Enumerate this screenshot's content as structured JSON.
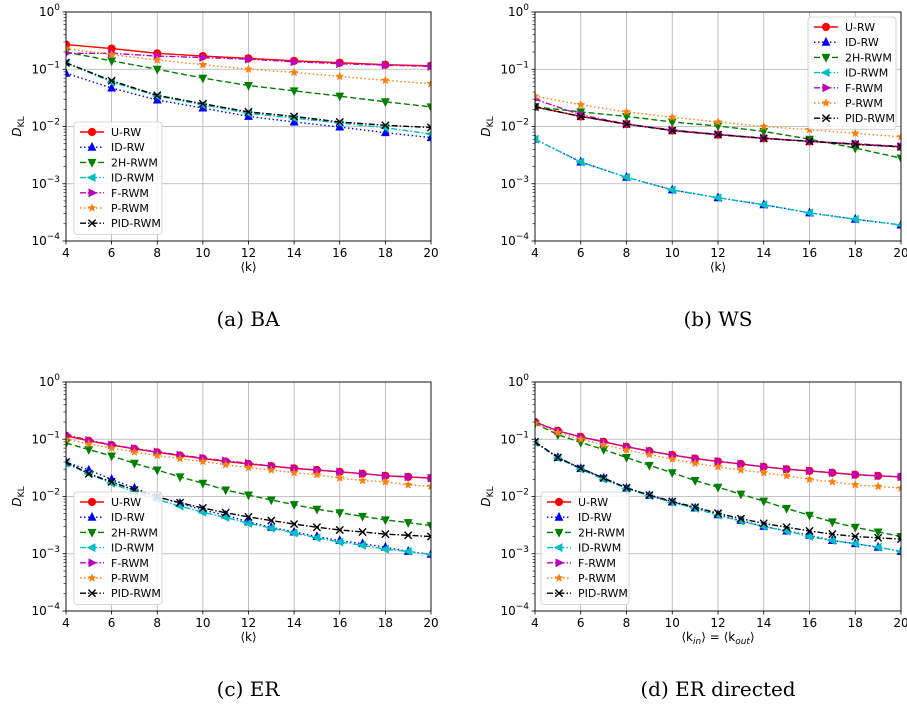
{
  "figure": {
    "series_styles": [
      {
        "name": "U-RW",
        "color": "#ff0000",
        "dash": "",
        "marker": "circle"
      },
      {
        "name": "ID-RW",
        "color": "#0000ff",
        "dash": "1.5,2.5",
        "marker": "tri-up"
      },
      {
        "name": "2H-RWM",
        "color": "#008000",
        "dash": "6,3",
        "marker": "tri-down"
      },
      {
        "name": "ID-RWM",
        "color": "#00bfbf",
        "dash": "6,2,1.5,2",
        "marker": "tri-left"
      },
      {
        "name": "F-RWM",
        "color": "#bf00bf",
        "dash": "6,2,1.5,2",
        "marker": "tri-right"
      },
      {
        "name": "P-RWM",
        "color": "#ff7f0e",
        "dash": "1.5,2.5",
        "marker": "star"
      },
      {
        "name": "PID-RWM",
        "color": "#000000",
        "dash": "6,2,1.5,2",
        "marker": "x"
      }
    ]
  },
  "chart_data": [
    {
      "type": "line",
      "caption": "(a) BA",
      "xlabel": "⟨k⟩",
      "ylabel": "D_KL",
      "yscale": "log",
      "xlim": [
        4,
        20
      ],
      "ylim": [
        0.0001,
        1
      ],
      "xticks": [
        "4",
        "6",
        "8",
        "10",
        "12",
        "14",
        "16",
        "18",
        "20"
      ],
      "yticks": [
        "10^-4",
        "10^-3",
        "10^-2",
        "10^-1",
        "10^0"
      ],
      "grid": true,
      "legend_position": "lower-left",
      "x": [
        4,
        6,
        8,
        10,
        12,
        14,
        16,
        18,
        20
      ],
      "series": [
        {
          "name": "U-RW",
          "values": [
            0.27,
            0.23,
            0.19,
            0.17,
            0.155,
            0.14,
            0.13,
            0.12,
            0.115
          ]
        },
        {
          "name": "ID-RW",
          "values": [
            0.085,
            0.047,
            0.029,
            0.021,
            0.015,
            0.012,
            0.0098,
            0.0078,
            0.0064
          ]
        },
        {
          "name": "2H-RWM",
          "values": [
            0.2,
            0.14,
            0.1,
            0.07,
            0.052,
            0.042,
            0.034,
            0.027,
            0.022
          ]
        },
        {
          "name": "ID-RWM",
          "values": [
            0.13,
            0.06,
            0.034,
            0.024,
            0.017,
            0.014,
            0.0115,
            0.0095,
            0.0074
          ]
        },
        {
          "name": "F-RWM",
          "values": [
            0.19,
            0.19,
            0.17,
            0.16,
            0.15,
            0.135,
            0.125,
            0.118,
            0.112
          ]
        },
        {
          "name": "P-RWM",
          "values": [
            0.23,
            0.18,
            0.145,
            0.12,
            0.1,
            0.088,
            0.075,
            0.064,
            0.056
          ]
        },
        {
          "name": "PID-RWM",
          "values": [
            0.13,
            0.063,
            0.035,
            0.025,
            0.018,
            0.015,
            0.012,
            0.0105,
            0.0096
          ]
        }
      ]
    },
    {
      "type": "line",
      "caption": "(b) WS",
      "xlabel": "⟨k⟩",
      "ylabel": "D_KL",
      "yscale": "log",
      "xlim": [
        4,
        20
      ],
      "ylim": [
        0.0001,
        1
      ],
      "xticks": [
        "4",
        "6",
        "8",
        "10",
        "12",
        "14",
        "16",
        "18",
        "20"
      ],
      "yticks": [
        "10^-4",
        "10^-3",
        "10^-2",
        "10^-1",
        "10^0"
      ],
      "grid": true,
      "legend_position": "top-right",
      "x": [
        4,
        6,
        8,
        10,
        12,
        14,
        16,
        18,
        20
      ],
      "series": [
        {
          "name": "U-RW",
          "values": [
            0.022,
            0.015,
            0.011,
            0.0085,
            0.0072,
            0.0062,
            0.0055,
            0.0049,
            0.0044
          ]
        },
        {
          "name": "ID-RW",
          "values": [
            0.006,
            0.0024,
            0.0013,
            0.00078,
            0.00057,
            0.00043,
            0.00031,
            0.00024,
            0.00019
          ]
        },
        {
          "name": "2H-RWM",
          "values": [
            0.022,
            0.018,
            0.015,
            0.012,
            0.0102,
            0.0082,
            0.006,
            0.0042,
            0.0028
          ]
        },
        {
          "name": "ID-RWM",
          "values": [
            0.006,
            0.0024,
            0.0013,
            0.00078,
            0.00057,
            0.00043,
            0.00031,
            0.00024,
            0.00019
          ]
        },
        {
          "name": "F-RWM",
          "values": [
            0.03,
            0.016,
            0.011,
            0.0087,
            0.0073,
            0.0063,
            0.0055,
            0.005,
            0.0045
          ]
        },
        {
          "name": "P-RWM",
          "values": [
            0.034,
            0.024,
            0.018,
            0.0145,
            0.012,
            0.01,
            0.0088,
            0.0076,
            0.0066
          ]
        },
        {
          "name": "PID-RWM",
          "values": [
            0.022,
            0.015,
            0.011,
            0.0085,
            0.0072,
            0.0062,
            0.0055,
            0.0049,
            0.0044
          ]
        }
      ]
    },
    {
      "type": "line",
      "caption": "(c) ER",
      "xlabel": "⟨k⟩",
      "ylabel": "D_KL",
      "yscale": "log",
      "xlim": [
        4,
        20
      ],
      "ylim": [
        0.0001,
        1
      ],
      "xticks": [
        "4",
        "6",
        "8",
        "10",
        "12",
        "14",
        "16",
        "18",
        "20"
      ],
      "yticks": [
        "10^-4",
        "10^-3",
        "10^-2",
        "10^-1",
        "10^0"
      ],
      "grid": true,
      "legend_position": "lower-left",
      "x": [
        4,
        5,
        6,
        7,
        8,
        9,
        10,
        11,
        12,
        13,
        14,
        15,
        16,
        17,
        18,
        19,
        20
      ],
      "series": [
        {
          "name": "U-RW",
          "values": [
            0.115,
            0.094,
            0.079,
            0.068,
            0.059,
            0.052,
            0.046,
            0.041,
            0.037,
            0.034,
            0.031,
            0.029,
            0.027,
            0.025,
            0.023,
            0.022,
            0.021
          ]
        },
        {
          "name": "ID-RW",
          "values": [
            0.04,
            0.029,
            0.02,
            0.014,
            0.0099,
            0.0076,
            0.0058,
            0.0047,
            0.0036,
            0.0029,
            0.0024,
            0.002,
            0.0017,
            0.0015,
            0.0013,
            0.0011,
            0.00098
          ]
        },
        {
          "name": "2H-RWM",
          "values": [
            0.086,
            0.066,
            0.051,
            0.038,
            0.029,
            0.022,
            0.017,
            0.013,
            0.0106,
            0.0087,
            0.0072,
            0.006,
            0.0052,
            0.0045,
            0.0039,
            0.0035,
            0.0031
          ]
        },
        {
          "name": "ID-RWM",
          "values": [
            0.038,
            0.025,
            0.017,
            0.012,
            0.0088,
            0.0068,
            0.0053,
            0.0043,
            0.0034,
            0.0028,
            0.0023,
            0.0019,
            0.0016,
            0.0014,
            0.0012,
            0.0011,
            0.00097
          ]
        },
        {
          "name": "F-RWM",
          "values": [
            0.12,
            0.096,
            0.08,
            0.069,
            0.06,
            0.053,
            0.047,
            0.042,
            0.038,
            0.034,
            0.031,
            0.029,
            0.027,
            0.025,
            0.023,
            0.022,
            0.021
          ]
        },
        {
          "name": "P-RWM",
          "values": [
            0.1,
            0.083,
            0.07,
            0.06,
            0.052,
            0.046,
            0.041,
            0.036,
            0.032,
            0.029,
            0.026,
            0.024,
            0.021,
            0.019,
            0.018,
            0.016,
            0.015
          ]
        },
        {
          "name": "PID-RWM",
          "values": [
            0.04,
            0.025,
            0.018,
            0.013,
            0.0098,
            0.0078,
            0.0063,
            0.0052,
            0.0044,
            0.0038,
            0.0033,
            0.0029,
            0.0026,
            0.0024,
            0.0022,
            0.0021,
            0.002
          ]
        }
      ]
    },
    {
      "type": "line",
      "caption": "(d) ER directed",
      "xlabel": "⟨k_in⟩ = ⟨k_out⟩",
      "ylabel": "D_KL",
      "yscale": "log",
      "xlim": [
        4,
        20
      ],
      "ylim": [
        0.0001,
        1
      ],
      "xticks": [
        "4",
        "6",
        "8",
        "10",
        "12",
        "14",
        "16",
        "18",
        "20"
      ],
      "yticks": [
        "10^-4",
        "10^-3",
        "10^-2",
        "10^-1",
        "10^0"
      ],
      "grid": true,
      "legend_position": "lower-left",
      "x": [
        4,
        5,
        6,
        7,
        8,
        9,
        10,
        11,
        12,
        13,
        14,
        15,
        16,
        17,
        18,
        19,
        20
      ],
      "series": [
        {
          "name": "U-RW",
          "values": [
            0.2,
            0.14,
            0.11,
            0.09,
            0.074,
            0.062,
            0.053,
            0.046,
            0.041,
            0.037,
            0.033,
            0.03,
            0.028,
            0.026,
            0.024,
            0.023,
            0.022
          ]
        },
        {
          "name": "ID-RW",
          "values": [
            0.09,
            0.048,
            0.031,
            0.021,
            0.014,
            0.0105,
            0.008,
            0.0063,
            0.0048,
            0.0038,
            0.003,
            0.0025,
            0.0021,
            0.0017,
            0.0015,
            0.0013,
            0.0011
          ]
        },
        {
          "name": "2H-RWM",
          "values": [
            0.19,
            0.12,
            0.088,
            0.066,
            0.048,
            0.035,
            0.026,
            0.019,
            0.0145,
            0.011,
            0.0083,
            0.0062,
            0.0047,
            0.0036,
            0.0029,
            0.0024,
            0.002
          ]
        },
        {
          "name": "ID-RWM",
          "values": [
            0.088,
            0.047,
            0.03,
            0.02,
            0.0138,
            0.0103,
            0.0079,
            0.0062,
            0.0047,
            0.0037,
            0.003,
            0.0025,
            0.002,
            0.0017,
            0.0015,
            0.0013,
            0.0011
          ]
        },
        {
          "name": "F-RWM",
          "values": [
            0.2,
            0.14,
            0.11,
            0.09,
            0.074,
            0.062,
            0.053,
            0.046,
            0.041,
            0.037,
            0.033,
            0.03,
            0.028,
            0.026,
            0.024,
            0.023,
            0.022
          ]
        },
        {
          "name": "P-RWM",
          "values": [
            0.19,
            0.13,
            0.1,
            0.08,
            0.065,
            0.054,
            0.045,
            0.038,
            0.033,
            0.029,
            0.026,
            0.023,
            0.02,
            0.018,
            0.016,
            0.015,
            0.014
          ]
        },
        {
          "name": "PID-RWM",
          "values": [
            0.09,
            0.048,
            0.031,
            0.021,
            0.0142,
            0.0106,
            0.0082,
            0.0065,
            0.0051,
            0.0041,
            0.0034,
            0.0029,
            0.0025,
            0.0022,
            0.002,
            0.0019,
            0.0018
          ]
        }
      ]
    }
  ]
}
